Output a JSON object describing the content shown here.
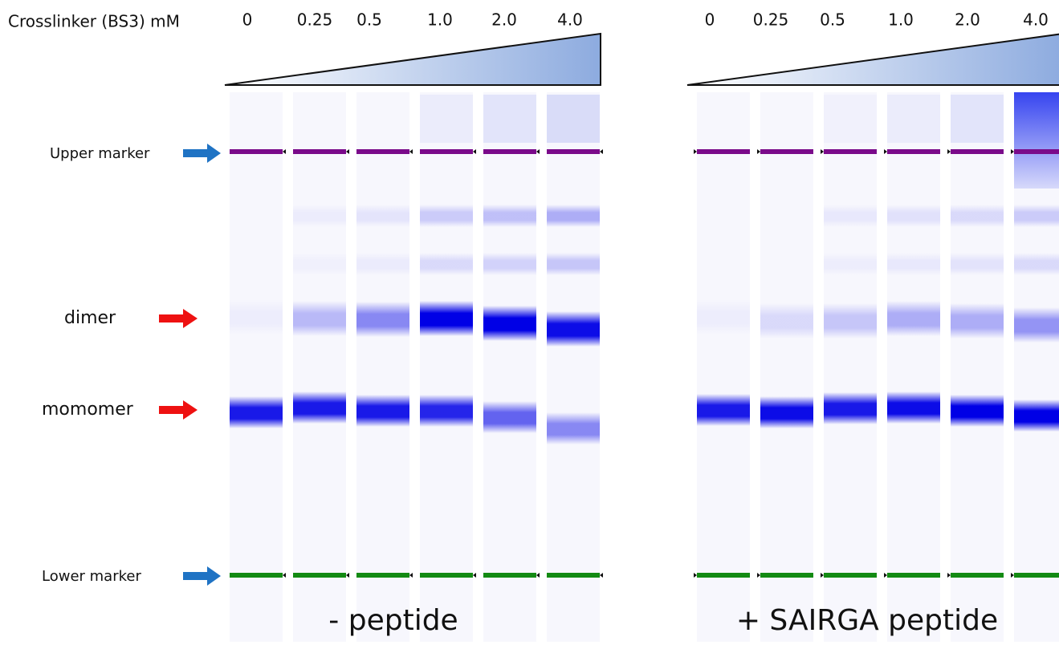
{
  "axis_label": "Crosslinker (BS3) mM",
  "panels": [
    {
      "concentrations": [
        "0",
        "0.25",
        "0.5",
        "1.0",
        "2.0",
        "4.0"
      ],
      "title": "- peptide"
    },
    {
      "concentrations": [
        "0",
        "0.25",
        "0.5",
        "1.0",
        "2.0",
        "4.0"
      ],
      "title": "+ SAIRGA peptide"
    }
  ],
  "row_labels": [
    "Upper marker",
    "dimer",
    "momomer",
    "Lower marker"
  ]
}
